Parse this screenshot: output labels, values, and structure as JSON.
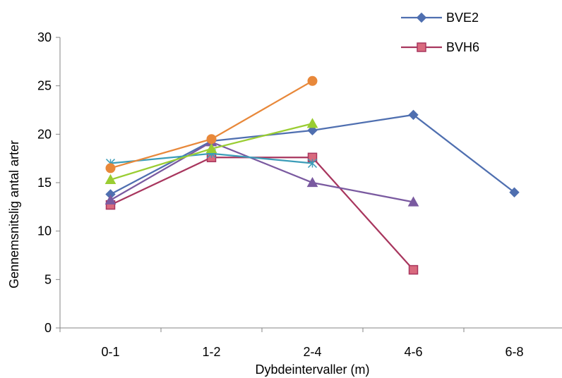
{
  "chart_data": {
    "type": "line",
    "title": "",
    "xlabel": "Dybdeintervaller (m)",
    "ylabel": "Gennemsnitslig antal arter",
    "categories": [
      "0-1",
      "1-2",
      "2-4",
      "4-6",
      "6-8"
    ],
    "ylim": [
      0,
      30
    ],
    "yticks": [
      0,
      5,
      10,
      15,
      20,
      25,
      30
    ],
    "grid": false,
    "legend_position": "top-right",
    "series": [
      {
        "name": "BVE2",
        "color": "#4F6FB0",
        "marker": "diamond",
        "values": [
          13.8,
          19.3,
          20.4,
          22.0,
          14.0
        ]
      },
      {
        "name": "BVH6",
        "color": "#A8365E",
        "marker": "square",
        "values": [
          12.7,
          17.6,
          17.6,
          6.0,
          null
        ]
      },
      {
        "color": "#7A5AA0",
        "marker": "triangle",
        "values": [
          13.2,
          19.2,
          15.0,
          13.0,
          null
        ]
      },
      {
        "color": "#3C9DB8",
        "marker": "star",
        "values": [
          17.0,
          18.0,
          17.0,
          null,
          null
        ]
      },
      {
        "color": "#9ACD32",
        "marker": "triangle",
        "values": [
          15.3,
          18.5,
          21.1,
          null,
          null
        ]
      },
      {
        "color": "#E8883A",
        "marker": "circle",
        "values": [
          16.5,
          19.5,
          25.5,
          null,
          null
        ]
      }
    ]
  }
}
